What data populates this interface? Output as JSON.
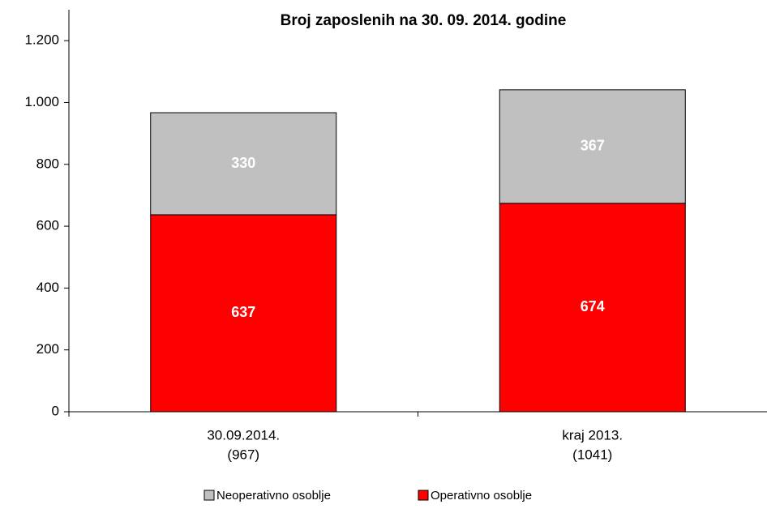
{
  "chart_data": {
    "type": "stacked_bar",
    "title": "Broj zaposlenih na  30. 09. 2014. godine",
    "categories": [
      [
        "30.09.2014.",
        "(967)"
      ],
      [
        "kraj 2013.",
        "(1041)"
      ]
    ],
    "series": [
      {
        "name": "Operativno osoblje",
        "color": "#ff0000",
        "values": [
          637,
          674
        ]
      },
      {
        "name": "Neoperativno osoblje",
        "color": "#c0c0c0",
        "values": [
          330,
          367
        ]
      }
    ],
    "ylim": [
      0,
      1300
    ],
    "yticks": [
      0,
      200,
      400,
      600,
      800,
      {
        "value": 1000,
        "label": "1.000"
      },
      {
        "value": 1200,
        "label": "1.200"
      }
    ],
    "legend": "bottom"
  }
}
